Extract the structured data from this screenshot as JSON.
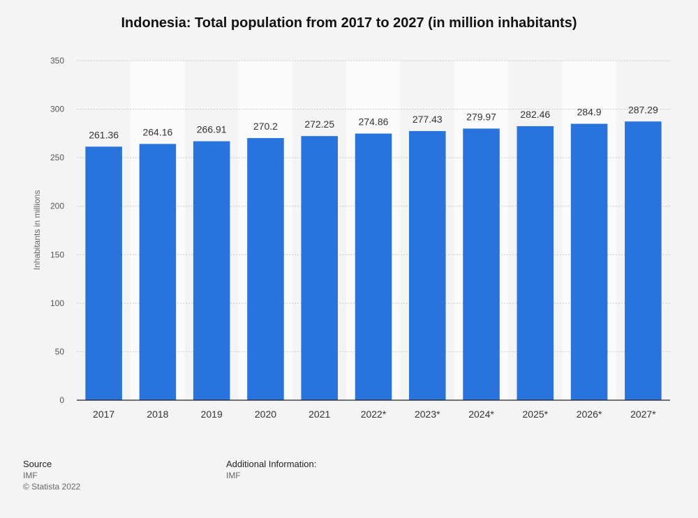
{
  "chart_data": {
    "type": "bar",
    "title": "Indonesia: Total population from 2017 to 2027 (in million inhabitants)",
    "xlabel": "",
    "ylabel": "Inhabitants in millions",
    "categories": [
      "2017",
      "2018",
      "2019",
      "2020",
      "2021",
      "2022*",
      "2023*",
      "2024*",
      "2025*",
      "2026*",
      "2027*"
    ],
    "values": [
      261.36,
      264.16,
      266.91,
      270.2,
      272.25,
      274.86,
      277.43,
      279.97,
      282.46,
      284.9,
      287.29
    ],
    "value_labels": [
      "261.36",
      "264.16",
      "266.91",
      "270.2",
      "272.25",
      "274.86",
      "277.43",
      "279.97",
      "282.46",
      "284.9",
      "287.29"
    ],
    "ylim": [
      0,
      350
    ],
    "yticks": [
      0,
      50,
      100,
      150,
      200,
      250,
      300,
      350
    ],
    "grid": true,
    "bar_color": "#2874dc"
  },
  "footer": {
    "source_heading": "Source",
    "source_value": "IMF",
    "copyright": "© Statista 2022",
    "additional_heading": "Additional Information:",
    "additional_value": "IMF"
  }
}
